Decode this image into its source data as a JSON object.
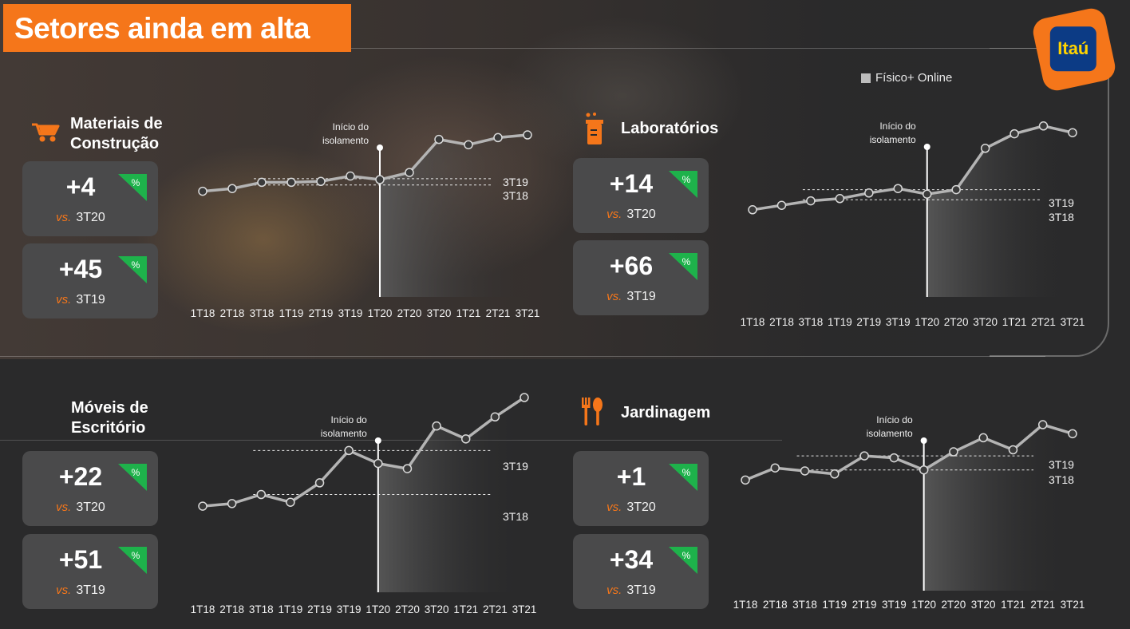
{
  "title": "Setores ainda em alta",
  "logo": "Itaú",
  "legend": "Físico+ Online",
  "colors": {
    "accent": "#f5761a",
    "positive": "#1eb24b",
    "line": "#b4b4b4",
    "logo_blue": "#0c3b85",
    "logo_yellow": "#ffd400"
  },
  "sectors": [
    {
      "name": "Materiais de Construção",
      "name_lines": [
        "Materiais de",
        "Construção"
      ],
      "icon": "wheelbarrow-icon",
      "stats": [
        {
          "value": "+4",
          "vs": "vs.",
          "ref": "3T20",
          "badge": "%"
        },
        {
          "value": "+45",
          "vs": "vs.",
          "ref": "3T19",
          "badge": "%"
        }
      ]
    },
    {
      "name": "Laboratórios",
      "name_lines": [
        "Laboratórios"
      ],
      "icon": "lab-beaker-icon",
      "stats": [
        {
          "value": "+14",
          "vs": "vs.",
          "ref": "3T20",
          "badge": "%"
        },
        {
          "value": "+66",
          "vs": "vs.",
          "ref": "3T19",
          "badge": "%"
        }
      ]
    },
    {
      "name": "Móveis de Escritório",
      "name_lines": [
        "Móveis de",
        "Escritório"
      ],
      "icon": "",
      "stats": [
        {
          "value": "+22",
          "vs": "vs.",
          "ref": "3T20",
          "badge": "%"
        },
        {
          "value": "+51",
          "vs": "vs.",
          "ref": "3T19",
          "badge": "%"
        }
      ]
    },
    {
      "name": "Jardinagem",
      "name_lines": [
        "Jardinagem"
      ],
      "icon": "garden-tools-icon",
      "stats": [
        {
          "value": "+1",
          "vs": "vs.",
          "ref": "3T20",
          "badge": "%"
        },
        {
          "value": "+34",
          "vs": "vs.",
          "ref": "3T19",
          "badge": "%"
        }
      ]
    }
  ],
  "chart_data": [
    {
      "type": "line",
      "sector": "Materiais de Construção",
      "categories": [
        "1T18",
        "2T18",
        "3T18",
        "1T19",
        "2T19",
        "3T19",
        "1T20",
        "2T20",
        "3T20",
        "1T21",
        "2T21",
        "3T21"
      ],
      "values": [
        20,
        23,
        30,
        30,
        31,
        37,
        33,
        41,
        78,
        72,
        80,
        83
      ],
      "ylim": [
        0,
        100
      ],
      "reference_lines": [
        {
          "label": "3T19",
          "value": 34
        },
        {
          "label": "3T18",
          "value": 27
        }
      ],
      "event": {
        "label_lines": [
          "Início do",
          "isolamento"
        ],
        "category": "1T20"
      },
      "grid": false
    },
    {
      "type": "line",
      "sector": "Laboratórios",
      "categories": [
        "1T18",
        "2T18",
        "3T18",
        "1T19",
        "2T19",
        "3T19",
        "1T20",
        "2T20",
        "3T20",
        "1T21",
        "2T21",
        "3T21"
      ],
      "values": [
        18,
        22,
        26,
        28,
        33,
        37,
        32,
        36,
        73,
        86,
        93,
        87
      ],
      "ylim": [
        0,
        100
      ],
      "reference_lines": [
        {
          "label": "3T19",
          "value": 36
        },
        {
          "label": "3T18",
          "value": 27
        }
      ],
      "event": {
        "label_lines": [
          "Início do",
          "isolamento"
        ],
        "category": "1T20"
      },
      "grid": false
    },
    {
      "type": "line",
      "sector": "Móveis de Escritório",
      "categories": [
        "1T18",
        "2T18",
        "3T18",
        "1T19",
        "2T19",
        "3T19",
        "1T20",
        "2T20",
        "3T20",
        "1T21",
        "2T21",
        "3T21"
      ],
      "values": [
        16,
        18,
        25,
        19,
        34,
        59,
        49,
        45,
        78,
        68,
        85,
        100
      ],
      "ylim": [
        0,
        100
      ],
      "reference_lines": [
        {
          "label": "3T19",
          "value": 59
        },
        {
          "label": "3T18",
          "value": 25
        }
      ],
      "event": {
        "label_lines": [
          "Início do",
          "isolamento"
        ],
        "category": "1T20"
      },
      "grid": false
    },
    {
      "type": "line",
      "sector": "Jardinagem",
      "categories": [
        "1T18",
        "2T18",
        "3T18",
        "1T19",
        "2T19",
        "3T19",
        "1T20",
        "2T20",
        "3T20",
        "1T21",
        "2T21",
        "3T21"
      ],
      "values": [
        18,
        30,
        27,
        24,
        42,
        40,
        28,
        46,
        60,
        48,
        73,
        64
      ],
      "ylim": [
        0,
        100
      ],
      "reference_lines": [
        {
          "label": "3T19",
          "value": 42
        },
        {
          "label": "3T18",
          "value": 28
        }
      ],
      "event": {
        "label_lines": [
          "Início do",
          "isolamento"
        ],
        "category": "1T20"
      },
      "grid": false
    }
  ]
}
